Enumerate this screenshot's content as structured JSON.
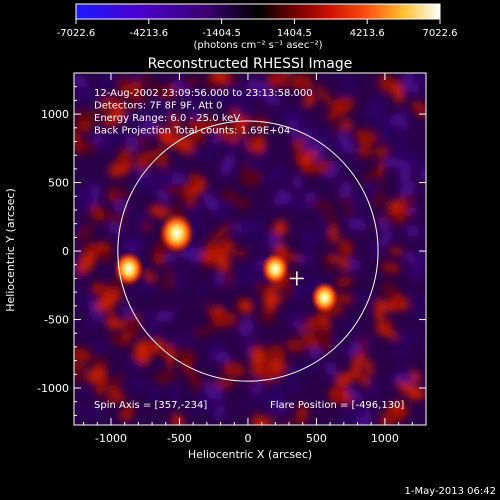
{
  "chart_data": {
    "type": "heatmap",
    "title": "Reconstructed RHESSI Image",
    "xlabel": "Heliocentric X (arcsec)",
    "ylabel": "Heliocentric Y (arcsec)",
    "xlim": [
      -1270,
      1300
    ],
    "ylim": [
      -1270,
      1300
    ],
    "x_ticks": [
      -1000,
      -500,
      0,
      500,
      1000
    ],
    "y_ticks": [
      1000,
      500,
      0,
      -500,
      -1000
    ],
    "colorbar": {
      "min": -7022.6,
      "max": 7022.6,
      "ticks": [
        "-7022.6",
        "-4213.6",
        "-1404.5",
        "1404.5",
        "4213.6",
        "7022.6"
      ],
      "unit_label": "(photons cm⁻² s⁻¹ asec⁻²)",
      "colors": [
        "#1a1aff",
        "#4a00cc",
        "#2a0050",
        "#000000",
        "#700000",
        "#d01000",
        "#ff5010",
        "#ffc030",
        "#ffffa0",
        "#ffffff"
      ]
    },
    "annotations": [
      "12-Aug-2002 23:09:56.000 to 23:13:58.000",
      "Detectors: 7F 8F 9F, Att 0",
      "Energy Range: 6.0 - 25.0 keV",
      "Back Projection     Total counts: 1.69E+04"
    ],
    "footer_left": "Spin Axis = [357,-234]",
    "footer_right": "Flare Position = [-496,130]",
    "solar_limb_radius_arcsec": 950,
    "flare_marker": [
      357,
      -200
    ],
    "sources": [
      {
        "x": -520,
        "y": 130,
        "value": 7022
      },
      {
        "x": -870,
        "y": -130,
        "value": 5200
      },
      {
        "x": 200,
        "y": -130,
        "value": 4400
      },
      {
        "x": 560,
        "y": -340,
        "value": 4300
      }
    ]
  },
  "timestamp": "1-May-2013 06:42"
}
